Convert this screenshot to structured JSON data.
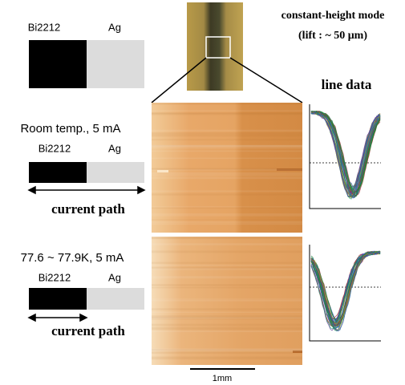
{
  "legend_top": {
    "left": "Bi2212",
    "right": "Ag"
  },
  "header": {
    "line1": "constant-height mode",
    "line2": "(lift : ~ 50 μm)"
  },
  "line_data_title": "line data",
  "panel_room": {
    "condition": "Room temp., 5 mA",
    "left": "Bi2212",
    "right": "Ag",
    "arrow_label": "current path"
  },
  "panel_cold": {
    "condition": "77.6 ~ 77.9K, 5 mA",
    "left": "Bi2212",
    "right": "Ag",
    "arrow_label": "current path"
  },
  "scale_bar": "1mm"
}
